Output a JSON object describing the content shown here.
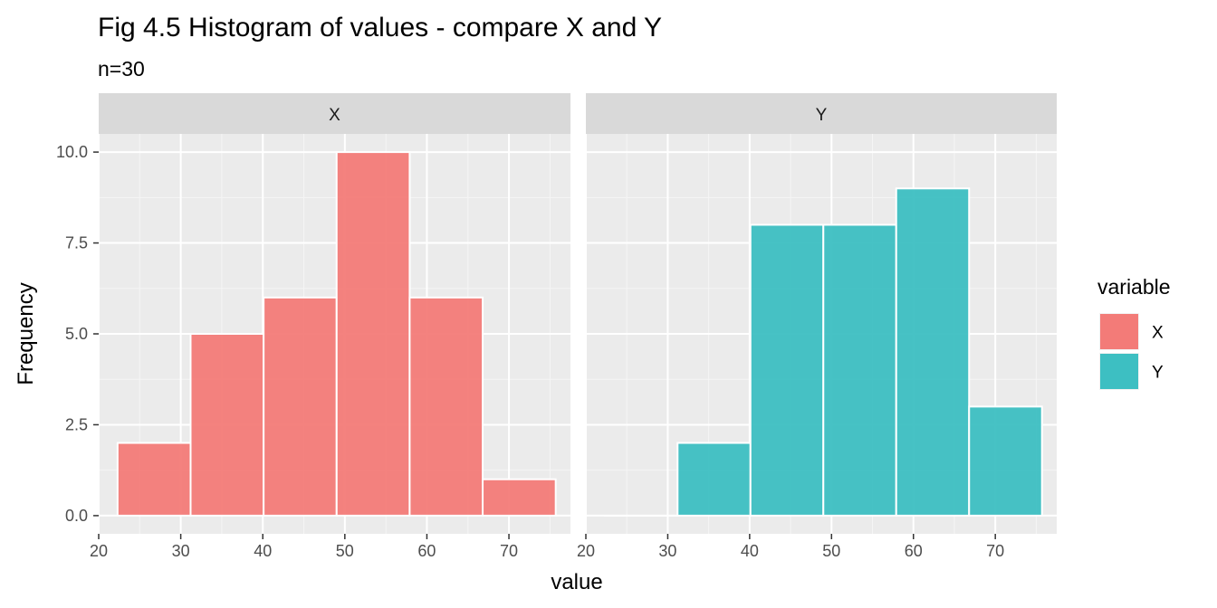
{
  "chart_data": {
    "type": "bar",
    "title": "Fig 4.5 Histogram of values - compare X and Y",
    "subtitle": "n=30",
    "xlabel": "value",
    "ylabel": "Frequency",
    "xlim": [
      20,
      77.5
    ],
    "ylim": [
      -0.5,
      10.5
    ],
    "x_ticks": [
      20,
      30,
      40,
      50,
      60,
      70
    ],
    "y_ticks": [
      0,
      2.5,
      5,
      7.5,
      10
    ],
    "y_tick_labels": [
      "0.0",
      "2.5",
      "5.0",
      "7.5",
      "10.0"
    ],
    "grid": true,
    "bin_width": 8.9,
    "legend": {
      "title": "variable",
      "placement": "right",
      "entries": [
        {
          "label": "X",
          "color": "#F37B78"
        },
        {
          "label": "Y",
          "color": "#3DBFC2"
        }
      ]
    },
    "panels": [
      {
        "strip": "X",
        "color": "#F37B78",
        "bins": [
          {
            "x0": 22.3,
            "x1": 31.2,
            "count": 2
          },
          {
            "x0": 31.2,
            "x1": 40.1,
            "count": 5
          },
          {
            "x0": 40.1,
            "x1": 49.0,
            "count": 6
          },
          {
            "x0": 49.0,
            "x1": 57.9,
            "count": 10
          },
          {
            "x0": 57.9,
            "x1": 66.8,
            "count": 6
          },
          {
            "x0": 66.8,
            "x1": 75.7,
            "count": 1
          }
        ]
      },
      {
        "strip": "Y",
        "color": "#3DBFC2",
        "bins": [
          {
            "x0": 22.3,
            "x1": 31.2,
            "count": 0
          },
          {
            "x0": 31.2,
            "x1": 40.1,
            "count": 2
          },
          {
            "x0": 40.1,
            "x1": 49.0,
            "count": 8
          },
          {
            "x0": 49.0,
            "x1": 57.9,
            "count": 8
          },
          {
            "x0": 57.9,
            "x1": 66.8,
            "count": 9
          },
          {
            "x0": 66.8,
            "x1": 75.7,
            "count": 3
          }
        ]
      }
    ]
  }
}
